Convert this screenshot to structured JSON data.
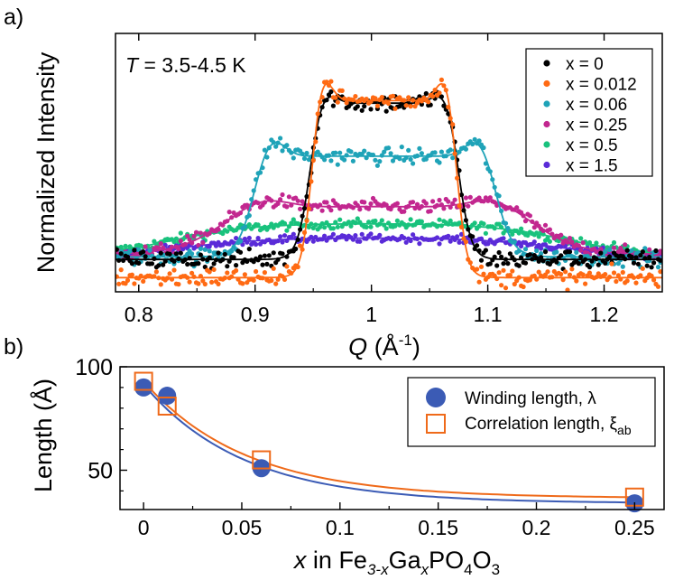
{
  "chart_data": [
    {
      "panel_label": "a)",
      "type": "scatter",
      "annotation": "T = 3.5-4.5 K",
      "annotation_parts": [
        "T",
        " = 3.5-4.5 K"
      ],
      "xlabel_parts": [
        "Q",
        " (Å",
        "-1",
        ")"
      ],
      "ylabel": "Normalized Intensity",
      "xlim": [
        0.78,
        1.25
      ],
      "ylim": [
        0,
        1
      ],
      "xticks": [
        0.8,
        0.9,
        1.0,
        1.1,
        1.2
      ],
      "xtick_labels": [
        "0.8",
        "0.9",
        "1",
        "1.1",
        "1.2"
      ],
      "ytick_labels": [],
      "legend_position": "top-right",
      "series": [
        {
          "name": "x = 0",
          "color": "#000000",
          "scatter_noise": 0.035,
          "fit": {
            "baseline": 0.125,
            "plateau": 0.73,
            "center": 1.011,
            "half_width": 0.064,
            "edge": 0.0055,
            "peak_height": 0.06,
            "peak_width": 0.014,
            "mid_dip": 0.0
          }
        },
        {
          "name": "x = 0.012",
          "color": "#ff6a13",
          "scatter_noise": 0.035,
          "fit": {
            "baseline": 0.055,
            "plateau": 0.74,
            "center": 1.011,
            "half_width": 0.0625,
            "edge": 0.0045,
            "peak_height": 0.115,
            "peak_width": 0.011,
            "mid_dip": 0.0
          }
        },
        {
          "name": "x = 0.06",
          "color": "#1fa3b8",
          "scatter_noise": 0.03,
          "fit": {
            "baseline": 0.135,
            "plateau": 0.525,
            "center": 1.003,
            "half_width": 0.105,
            "edge": 0.0075,
            "peak_height": 0.085,
            "peak_width": 0.016,
            "mid_dip": 0.0
          }
        },
        {
          "name": "x = 0.25",
          "color": "#c2278f",
          "scatter_noise": 0.025,
          "fit": {
            "baseline": 0.145,
            "plateau": 0.33,
            "center": 1.006,
            "half_width": 0.14,
            "edge": 0.02,
            "peak_height": 0.04,
            "peak_width": 0.03,
            "mid_dip": 0.0
          }
        },
        {
          "name": "x = 0.5",
          "color": "#19c27d",
          "scatter_noise": 0.018,
          "fit": {
            "baseline": 0.135,
            "plateau": 0.265,
            "center": 1.0,
            "half_width": 0.17,
            "edge": 0.035,
            "peak_height": 0.0,
            "peak_width": 0.03,
            "mid_dip": 0.0
          }
        },
        {
          "name": "x = 1.5",
          "color": "#5a2bd8",
          "scatter_noise": 0.015,
          "fit": {
            "baseline": 0.125,
            "plateau": 0.21,
            "center": 1.0,
            "half_width": 0.17,
            "edge": 0.04,
            "peak_height": 0.0,
            "peak_width": 0.03,
            "mid_dip": 0.0
          }
        }
      ]
    },
    {
      "panel_label": "b)",
      "type": "scatter",
      "xlabel_parts": [
        "x",
        " in Fe",
        "3-x",
        "Ga",
        "x",
        "PO",
        "4",
        "O",
        "3"
      ],
      "ylabel": "Length (Å)",
      "xlim": [
        -0.012,
        0.265
      ],
      "ylim": [
        31,
        100
      ],
      "xticks": [
        0,
        0.05,
        0.1,
        0.15,
        0.2,
        0.25
      ],
      "xtick_labels": [
        "0",
        "0.05",
        "0.1",
        "0.15",
        "0.2",
        "0.25"
      ],
      "yticks": [
        50,
        100
      ],
      "ytick_labels": [
        "50",
        "100"
      ],
      "legend_position": "top-right",
      "series": [
        {
          "name": "Winding length, λ",
          "legend_parts": [
            "Winding length, λ"
          ],
          "marker": "filled-circle",
          "color": "#3b5bb5",
          "x": [
            0,
            0.012,
            0.06,
            0.25
          ],
          "y": [
            90,
            86,
            51,
            34
          ],
          "fit": {
            "a": 34.0,
            "b": 57.5,
            "c": 0.051
          }
        },
        {
          "name": "Correlation length, ξab",
          "legend_parts": [
            "Correlation length, ξ",
            "ab"
          ],
          "marker": "open-square",
          "color": "#ef6a1a",
          "x": [
            0,
            0.012,
            0.06,
            0.25
          ],
          "y": [
            93,
            81,
            55,
            37
          ],
          "fit": {
            "a": 36.5,
            "b": 56.5,
            "c": 0.052
          }
        }
      ]
    }
  ]
}
